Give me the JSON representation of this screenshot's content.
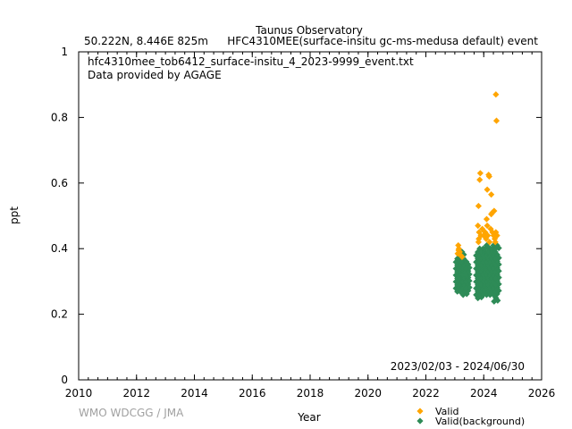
{
  "chart_data": {
    "type": "scatter",
    "title_line1": "Taunus Observatory",
    "title_location": "50.222N, 8.446E 825m",
    "title_species": "HFC4310MEE(surface-insitu gc-ms-medusa default) event",
    "file_label": "hfc4310mee_tob6412_surface-insitu_4_2023-9999_event.txt",
    "provider_label": "Data provided by AGAGE",
    "date_range": "2023/02/03 - 2024/06/30",
    "credit": "WMO WDCGG / JMA",
    "xlabel": "Year",
    "ylabel": "ppt",
    "xlim": [
      2010,
      2026
    ],
    "ylim": [
      0,
      1
    ],
    "xticks": [
      "2010",
      "2012",
      "2014",
      "2016",
      "2018",
      "2020",
      "2022",
      "2024",
      "2026"
    ],
    "yticks": [
      "0",
      "0.2",
      "0.4",
      "0.6",
      "0.8",
      "1"
    ],
    "grid": false,
    "legend_placement": "bottom-right",
    "series": [
      {
        "name": "Valid(background)",
        "color": "#2e8b57",
        "points": [
          [
            2023.1,
            0.29
          ],
          [
            2023.1,
            0.31
          ],
          [
            2023.1,
            0.33
          ],
          [
            2023.1,
            0.35
          ],
          [
            2023.1,
            0.37
          ],
          [
            2023.15,
            0.28
          ],
          [
            2023.15,
            0.3
          ],
          [
            2023.15,
            0.32
          ],
          [
            2023.15,
            0.34
          ],
          [
            2023.15,
            0.36
          ],
          [
            2023.15,
            0.38
          ],
          [
            2023.2,
            0.29
          ],
          [
            2023.2,
            0.31
          ],
          [
            2023.2,
            0.33
          ],
          [
            2023.2,
            0.35
          ],
          [
            2023.2,
            0.37
          ],
          [
            2023.25,
            0.28
          ],
          [
            2023.25,
            0.3
          ],
          [
            2023.25,
            0.32
          ],
          [
            2023.25,
            0.34
          ],
          [
            2023.25,
            0.36
          ],
          [
            2023.25,
            0.39
          ],
          [
            2023.3,
            0.29
          ],
          [
            2023.3,
            0.31
          ],
          [
            2023.3,
            0.33
          ],
          [
            2023.3,
            0.35
          ],
          [
            2023.3,
            0.37
          ],
          [
            2023.35,
            0.27
          ],
          [
            2023.35,
            0.29
          ],
          [
            2023.35,
            0.31
          ],
          [
            2023.35,
            0.33
          ],
          [
            2023.35,
            0.35
          ],
          [
            2023.4,
            0.28
          ],
          [
            2023.4,
            0.3
          ],
          [
            2023.4,
            0.32
          ],
          [
            2023.4,
            0.34
          ],
          [
            2023.4,
            0.36
          ],
          [
            2023.44,
            0.29
          ],
          [
            2023.44,
            0.31
          ],
          [
            2023.44,
            0.33
          ],
          [
            2023.44,
            0.35
          ],
          [
            2023.8,
            0.27
          ],
          [
            2023.8,
            0.29
          ],
          [
            2023.8,
            0.31
          ],
          [
            2023.8,
            0.33
          ],
          [
            2023.8,
            0.35
          ],
          [
            2023.8,
            0.37
          ],
          [
            2023.8,
            0.39
          ],
          [
            2023.86,
            0.26
          ],
          [
            2023.86,
            0.28
          ],
          [
            2023.86,
            0.3
          ],
          [
            2023.86,
            0.32
          ],
          [
            2023.86,
            0.34
          ],
          [
            2023.86,
            0.36
          ],
          [
            2023.86,
            0.38
          ],
          [
            2023.86,
            0.4
          ],
          [
            2023.92,
            0.27
          ],
          [
            2023.92,
            0.29
          ],
          [
            2023.92,
            0.31
          ],
          [
            2023.92,
            0.33
          ],
          [
            2023.92,
            0.35
          ],
          [
            2023.92,
            0.37
          ],
          [
            2023.92,
            0.39
          ],
          [
            2023.98,
            0.28
          ],
          [
            2023.98,
            0.3
          ],
          [
            2023.98,
            0.32
          ],
          [
            2023.98,
            0.34
          ],
          [
            2023.98,
            0.36
          ],
          [
            2023.98,
            0.38
          ],
          [
            2023.98,
            0.4
          ],
          [
            2024.04,
            0.27
          ],
          [
            2024.04,
            0.29
          ],
          [
            2024.04,
            0.31
          ],
          [
            2024.04,
            0.33
          ],
          [
            2024.04,
            0.35
          ],
          [
            2024.04,
            0.37
          ],
          [
            2024.04,
            0.39
          ],
          [
            2024.1,
            0.28
          ],
          [
            2024.1,
            0.3
          ],
          [
            2024.1,
            0.32
          ],
          [
            2024.1,
            0.34
          ],
          [
            2024.1,
            0.36
          ],
          [
            2024.1,
            0.38
          ],
          [
            2024.1,
            0.41
          ],
          [
            2024.16,
            0.27
          ],
          [
            2024.16,
            0.29
          ],
          [
            2024.16,
            0.31
          ],
          [
            2024.16,
            0.33
          ],
          [
            2024.16,
            0.35
          ],
          [
            2024.16,
            0.37
          ],
          [
            2024.16,
            0.39
          ],
          [
            2024.22,
            0.28
          ],
          [
            2024.22,
            0.3
          ],
          [
            2024.22,
            0.32
          ],
          [
            2024.22,
            0.34
          ],
          [
            2024.22,
            0.36
          ],
          [
            2024.22,
            0.38
          ],
          [
            2024.22,
            0.4
          ],
          [
            2024.28,
            0.27
          ],
          [
            2024.28,
            0.29
          ],
          [
            2024.28,
            0.31
          ],
          [
            2024.28,
            0.33
          ],
          [
            2024.28,
            0.35
          ],
          [
            2024.28,
            0.37
          ],
          [
            2024.28,
            0.39
          ],
          [
            2024.34,
            0.28
          ],
          [
            2024.34,
            0.3
          ],
          [
            2024.34,
            0.32
          ],
          [
            2024.34,
            0.34
          ],
          [
            2024.34,
            0.36
          ],
          [
            2024.34,
            0.38
          ],
          [
            2024.34,
            0.41
          ],
          [
            2024.4,
            0.27
          ],
          [
            2024.4,
            0.29
          ],
          [
            2024.4,
            0.31
          ],
          [
            2024.4,
            0.33
          ],
          [
            2024.4,
            0.35
          ],
          [
            2024.4,
            0.37
          ],
          [
            2024.4,
            0.39
          ],
          [
            2024.42,
            0.25
          ],
          [
            2024.46,
            0.28
          ],
          [
            2024.46,
            0.3
          ],
          [
            2024.46,
            0.32
          ],
          [
            2024.46,
            0.34
          ],
          [
            2024.46,
            0.36
          ],
          [
            2024.46,
            0.38
          ],
          [
            2024.46,
            0.41
          ]
        ]
      },
      {
        "name": "Valid",
        "color": "#ffa500",
        "points": [
          [
            2023.12,
            0.41
          ],
          [
            2023.14,
            0.4
          ],
          [
            2023.17,
            0.39
          ],
          [
            2023.1,
            0.385
          ],
          [
            2023.2,
            0.38
          ],
          [
            2023.25,
            0.375
          ],
          [
            2023.13,
            0.395
          ],
          [
            2024.42,
            0.87
          ],
          [
            2024.44,
            0.79
          ],
          [
            2023.88,
            0.63
          ],
          [
            2023.86,
            0.61
          ],
          [
            2024.17,
            0.625
          ],
          [
            2024.19,
            0.62
          ],
          [
            2024.12,
            0.58
          ],
          [
            2024.26,
            0.565
          ],
          [
            2024.1,
            0.49
          ],
          [
            2023.82,
            0.53
          ],
          [
            2024.3,
            0.51
          ],
          [
            2024.36,
            0.515
          ],
          [
            2024.26,
            0.505
          ],
          [
            2023.8,
            0.47
          ],
          [
            2023.84,
            0.45
          ],
          [
            2023.83,
            0.43
          ],
          [
            2023.82,
            0.42
          ],
          [
            2023.95,
            0.46
          ],
          [
            2024.0,
            0.44
          ],
          [
            2024.05,
            0.45
          ],
          [
            2024.08,
            0.43
          ],
          [
            2024.14,
            0.44
          ],
          [
            2024.2,
            0.42
          ],
          [
            2024.24,
            0.46
          ],
          [
            2024.3,
            0.45
          ],
          [
            2024.34,
            0.44
          ],
          [
            2024.38,
            0.43
          ],
          [
            2024.42,
            0.45
          ],
          [
            2024.46,
            0.44
          ],
          [
            2024.12,
            0.47
          ],
          [
            2024.4,
            0.42
          ],
          [
            2023.9,
            0.44
          ]
        ]
      }
    ]
  }
}
